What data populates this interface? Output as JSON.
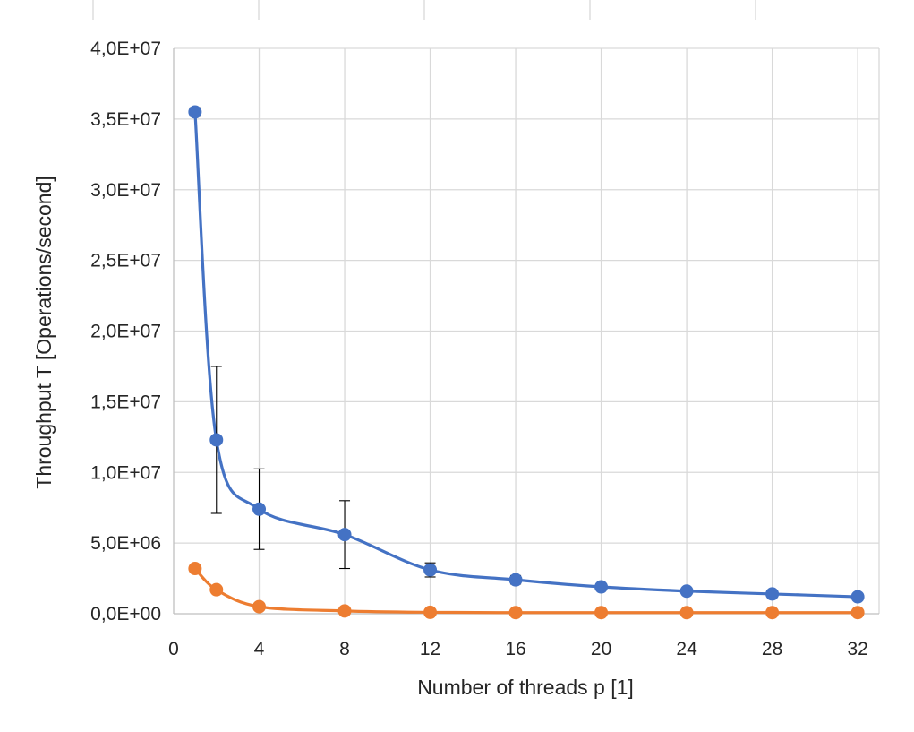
{
  "chart_data": {
    "type": "line",
    "title": "",
    "xlabel": "Number of threads p [1]",
    "ylabel": "Throughput T [Operations/second]",
    "xlim": [
      0,
      33
    ],
    "ylim": [
      0,
      40000000
    ],
    "x_ticks": [
      0,
      4,
      8,
      12,
      16,
      20,
      24,
      28,
      32
    ],
    "x_tick_labels": [
      "0",
      "4",
      "8",
      "12",
      "16",
      "20",
      "24",
      "28",
      "32"
    ],
    "y_ticks": [
      0,
      5000000,
      10000000,
      15000000,
      20000000,
      25000000,
      30000000,
      35000000,
      40000000
    ],
    "y_tick_labels": [
      "0,0E+00",
      "5,0E+06",
      "1,0E+07",
      "1,5E+07",
      "2,0E+07",
      "2,5E+07",
      "3,0E+07",
      "3,5E+07",
      "4,0E+07"
    ],
    "grid": true,
    "legend": "none",
    "x": [
      1,
      2,
      4,
      8,
      12,
      16,
      20,
      24,
      28,
      32
    ],
    "series": [
      {
        "color": "#4472c4",
        "values": [
          35500000,
          12300000,
          7400000,
          5600000,
          3100000,
          2400000,
          1900000,
          1600000,
          1400000,
          1200000
        ],
        "error": [
          300000,
          5200000,
          2850000,
          2400000,
          500000,
          300000,
          200000,
          150000,
          150000,
          100000
        ]
      },
      {
        "color": "#ed7d31",
        "values": [
          3200000,
          1700000,
          500000,
          200000,
          100000,
          80000,
          80000,
          80000,
          80000,
          80000
        ],
        "error": [
          100000,
          100000,
          50000,
          30000,
          20000,
          10000,
          10000,
          10000,
          10000,
          10000
        ]
      }
    ]
  }
}
